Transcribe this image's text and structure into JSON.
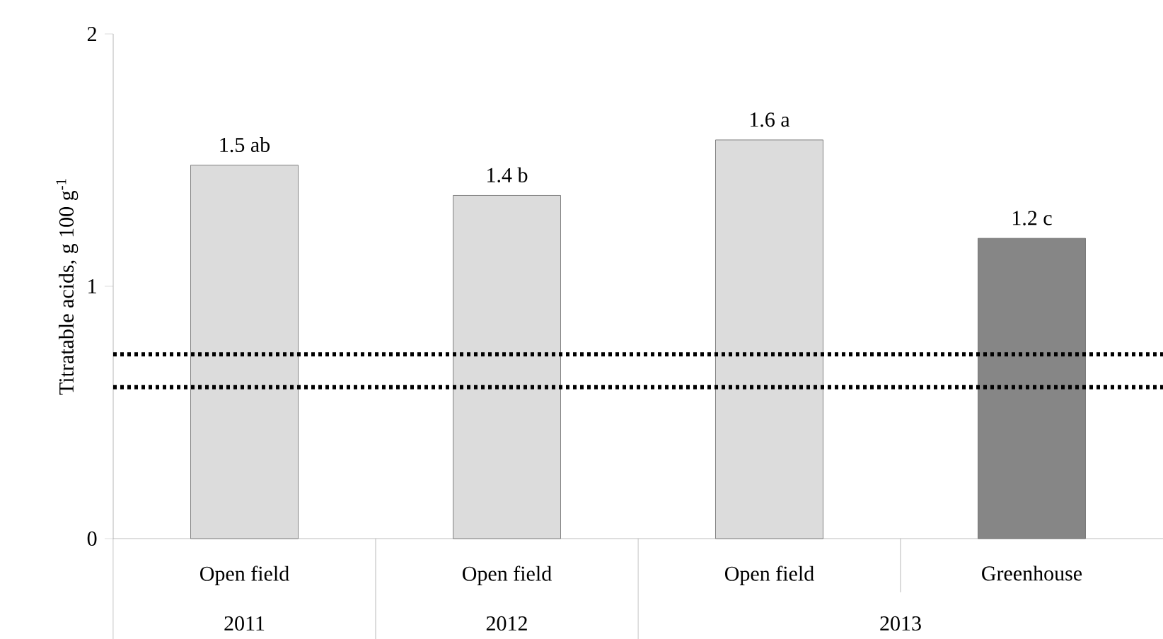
{
  "chart_data": {
    "type": "bar",
    "ylabel": "Titratable acids, g 100 g$^{-1}$",
    "categories": [
      "Open field",
      "Open field",
      "Open field",
      "Greenhouse"
    ],
    "values": [
      1.48,
      1.36,
      1.58,
      1.19
    ],
    "colors": [
      "#dcdcdc",
      "#dcdcdc",
      "#dcdcdc",
      "#868686"
    ],
    "value_labels": [
      "1.5 ab",
      "1.4 b",
      "1.6 a",
      "1.2 c"
    ],
    "ylim": [
      0,
      2
    ],
    "yticks": [
      0,
      1,
      2
    ],
    "ref_lines": [
      {
        "axis": "y",
        "value": 0.73,
        "color": "#000000",
        "line_style": "dotted"
      },
      {
        "axis": "y",
        "value": 0.6,
        "color": "#000000",
        "line_style": "dotted"
      }
    ],
    "annotations": [
      "2011",
      "2012",
      "2013"
    ]
  }
}
